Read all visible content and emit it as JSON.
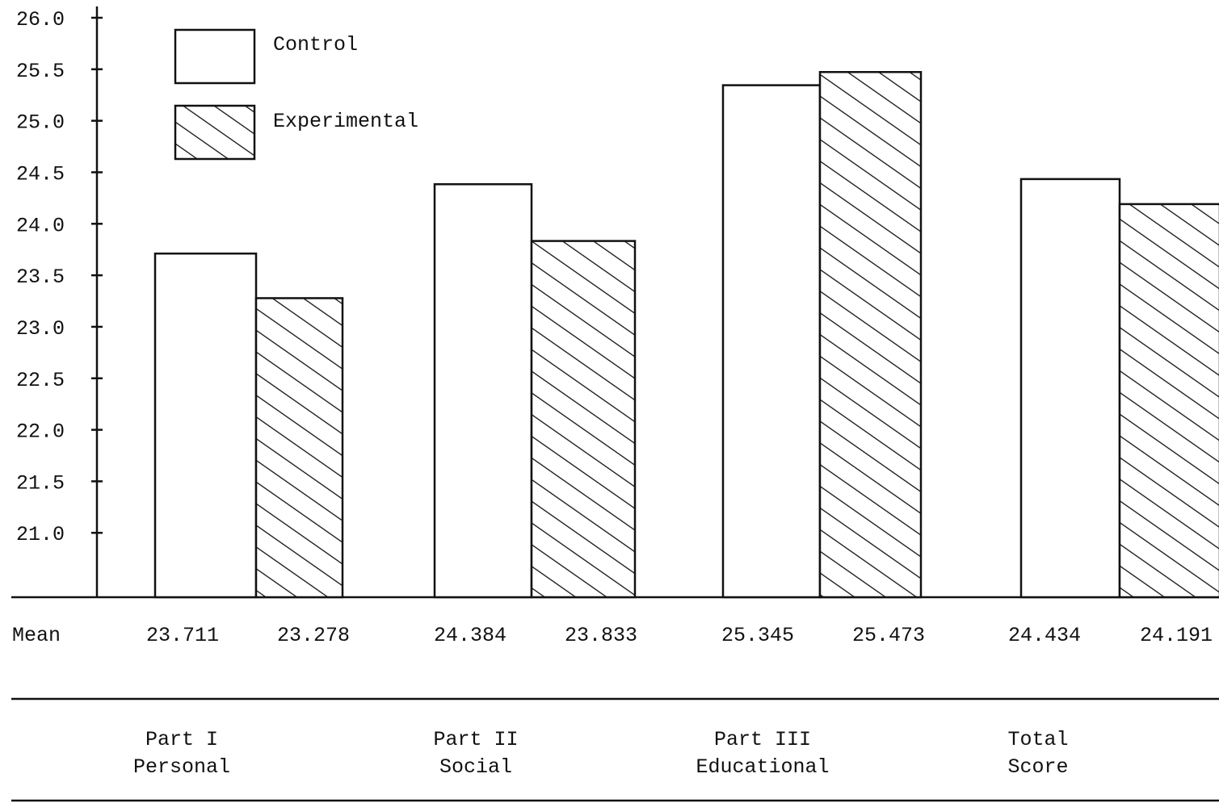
{
  "chart_data": {
    "type": "bar",
    "categories": [
      {
        "line1": "Part I",
        "line2": "Personal"
      },
      {
        "line1": "Part II",
        "line2": "Social"
      },
      {
        "line1": "Part III",
        "line2": "Educational"
      },
      {
        "line1": "Total",
        "line2": "Score"
      }
    ],
    "series": [
      {
        "name": "Control",
        "values": [
          23.711,
          24.384,
          25.345,
          24.434
        ],
        "pattern": "plain"
      },
      {
        "name": "Experimental",
        "values": [
          23.278,
          23.833,
          25.473,
          24.191
        ],
        "pattern": "hatched"
      }
    ],
    "value_row_label": "Mean",
    "value_labels": [
      [
        "23.711",
        "23.278"
      ],
      [
        "24.384",
        "23.833"
      ],
      [
        "25.345",
        "25.473"
      ],
      [
        "24.434",
        "24.191"
      ]
    ],
    "yticks": [
      "21.0",
      "21.5",
      "22.0",
      "22.5",
      "23.0",
      "23.5",
      "24.0",
      "24.5",
      "25.0",
      "25.5",
      "26.0"
    ],
    "ylim": [
      20.375,
      26.0
    ],
    "legend_position": "top-left",
    "colors": {
      "ink": "#111111",
      "background": "#ffffff"
    }
  }
}
